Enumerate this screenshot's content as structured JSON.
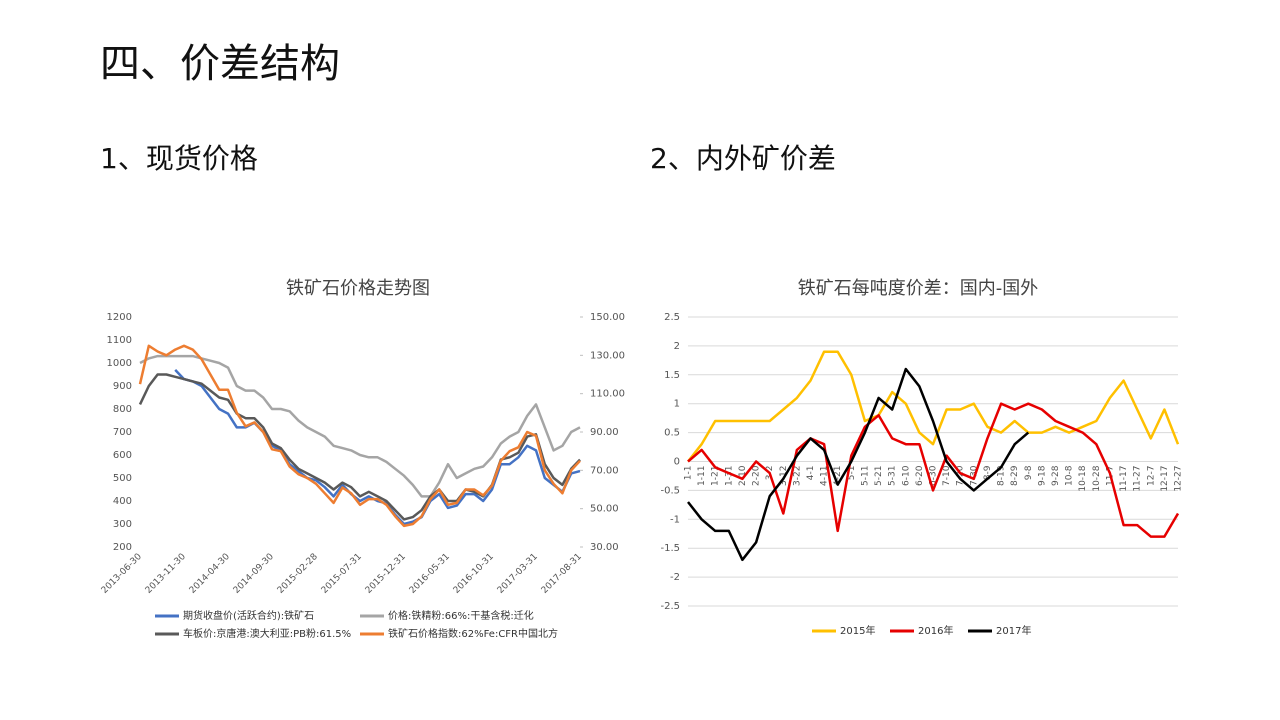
{
  "header": {
    "title": "四、价差结构"
  },
  "sections": [
    "1、现货价格",
    "2、内外矿价差"
  ],
  "chart_data": [
    {
      "type": "line",
      "title": "铁矿石价格走势图",
      "categories": [
        "2013-06-30",
        null,
        null,
        null,
        null,
        "2013-11-30",
        null,
        null,
        null,
        null,
        "2014-04-30",
        null,
        null,
        null,
        null,
        "2014-09-30",
        null,
        null,
        null,
        null,
        "2015-02-28",
        null,
        null,
        null,
        null,
        "2015-07-31",
        null,
        null,
        null,
        null,
        "2015-12-31",
        null,
        null,
        null,
        null,
        "2016-05-31",
        null,
        null,
        null,
        null,
        "2016-10-31",
        null,
        null,
        null,
        null,
        "2017-03-31",
        null,
        null,
        null,
        null,
        "2017-08-31"
      ],
      "ylim": [
        200,
        1200
      ],
      "yticks": [
        200,
        300,
        400,
        500,
        600,
        700,
        800,
        900,
        1000,
        1100,
        1200
      ],
      "y2lim": [
        30,
        150
      ],
      "y2ticks": [
        {
          "value": 30,
          "label": "30.00"
        },
        {
          "value": 50,
          "label": "50.00"
        },
        {
          "value": 70,
          "label": "70.00"
        },
        {
          "value": 90,
          "label": "90.00"
        },
        {
          "value": 110,
          "label": "110.00"
        },
        {
          "value": 130,
          "label": "130.00"
        },
        {
          "value": 150,
          "label": "150.00"
        }
      ],
      "grid": false,
      "legend": "bottom",
      "series": [
        {
          "name": "期货收盘价(活跃合约):铁矿石",
          "color": "#4472c4",
          "values": [
            null,
            null,
            null,
            null,
            970,
            930,
            920,
            900,
            850,
            800,
            780,
            720,
            720,
            740,
            700,
            640,
            620,
            560,
            530,
            500,
            490,
            460,
            420,
            470,
            430,
            400,
            420,
            400,
            390,
            340,
            300,
            310,
            330,
            400,
            430,
            370,
            380,
            430,
            430,
            400,
            450,
            560,
            560,
            590,
            640,
            620,
            500,
            470,
            440,
            520,
            530
          ]
        },
        {
          "name": "价格:铁精粉:66%:干基含税:迁化",
          "color": "#a5a5a5",
          "values": [
            1000,
            1020,
            1030,
            1030,
            1030,
            1030,
            1030,
            1020,
            1010,
            1000,
            980,
            900,
            880,
            880,
            850,
            800,
            800,
            790,
            750,
            720,
            700,
            680,
            640,
            630,
            620,
            600,
            590,
            590,
            570,
            540,
            510,
            470,
            420,
            420,
            480,
            560,
            500,
            520,
            540,
            550,
            590,
            650,
            680,
            700,
            770,
            820,
            720,
            620,
            640,
            700,
            720
          ]
        },
        {
          "name": "车板价:京唐港:澳大利亚:PB粉:61.5%",
          "color": "#595959",
          "values": [
            820,
            900,
            950,
            950,
            940,
            930,
            920,
            910,
            880,
            850,
            840,
            780,
            760,
            760,
            720,
            650,
            630,
            580,
            540,
            520,
            500,
            480,
            450,
            480,
            460,
            420,
            440,
            420,
            400,
            360,
            320,
            330,
            360,
            420,
            450,
            400,
            400,
            450,
            440,
            420,
            470,
            580,
            590,
            610,
            680,
            690,
            560,
            500,
            470,
            540,
            580
          ]
        },
        {
          "name": "铁矿石价格指数:62%Fe:CFR中国北方",
          "color": "#ed7d31",
          "axis": "y2",
          "values": [
            115,
            135,
            132,
            130,
            133,
            135,
            133,
            128,
            120,
            112,
            112,
            100,
            93,
            95,
            90,
            81,
            80,
            72,
            68,
            66,
            63,
            58,
            53,
            61,
            58,
            52,
            55,
            55,
            52,
            46,
            41,
            42,
            46,
            55,
            60,
            52,
            53,
            60,
            60,
            57,
            62,
            75,
            80,
            82,
            90,
            88,
            70,
            63,
            58,
            70,
            75
          ]
        }
      ]
    },
    {
      "type": "line",
      "title": "铁矿石每吨度价差：国内-国外",
      "categories": [
        "1-1",
        "1-11",
        "1-21",
        "1-31",
        "2-10",
        "2-20",
        "3-2",
        "3-12",
        "3-22",
        "4-1",
        "4-11",
        "4-21",
        "5-1",
        "5-11",
        "5-21",
        "5-31",
        "6-10",
        "6-20",
        "6-30",
        "7-10",
        "7-20",
        "7-30",
        "8-9",
        "8-19",
        "8-29",
        "9-8",
        "9-18",
        "9-28",
        "10-8",
        "10-18",
        "10-28",
        "11-7",
        "11-17",
        "11-27",
        "12-7",
        "12-17",
        "12-27"
      ],
      "ylim": [
        -2.5,
        2.5
      ],
      "yticks": [
        -2.5,
        -2,
        -1.5,
        -1,
        -0.5,
        0,
        0.5,
        1,
        1.5,
        2,
        2.5
      ],
      "grid": true,
      "legend": "bottom",
      "series": [
        {
          "name": "2015年",
          "color": "#ffc000",
          "values": [
            0,
            0.3,
            0.7,
            0.7,
            0.7,
            0.7,
            0.7,
            0.9,
            1.1,
            1.4,
            1.9,
            1.9,
            1.5,
            0.7,
            0.8,
            1.2,
            1.0,
            0.5,
            0.3,
            0.9,
            0.9,
            1.0,
            0.6,
            0.5,
            0.7,
            0.5,
            0.5,
            0.6,
            0.5,
            0.6,
            0.7,
            1.1,
            1.4,
            0.9,
            0.4,
            0.9,
            0.3
          ]
        },
        {
          "name": "2016年",
          "color": "#e60000",
          "values": [
            0,
            0.2,
            -0.1,
            -0.2,
            -0.3,
            0,
            -0.2,
            -0.9,
            0.2,
            0.4,
            0.3,
            -1.2,
            0.1,
            0.6,
            0.8,
            0.4,
            0.3,
            0.3,
            -0.5,
            0.1,
            -0.2,
            -0.3,
            0.4,
            1.0,
            0.9,
            1.0,
            0.9,
            0.7,
            0.6,
            0.5,
            0.3,
            -0.2,
            -1.1,
            -1.1,
            -1.3,
            -1.3,
            -0.9
          ]
        },
        {
          "name": "2017年",
          "color": "#000000",
          "values": [
            -0.7,
            -1.0,
            -1.2,
            -1.2,
            -1.7,
            -1.4,
            -0.6,
            -0.3,
            0.1,
            0.4,
            0.2,
            -0.4,
            0,
            0.5,
            1.1,
            0.9,
            1.6,
            1.3,
            0.7,
            0,
            -0.3,
            -0.5,
            -0.3,
            -0.1,
            0.3,
            0.5,
            null,
            null,
            null,
            null,
            null,
            null,
            null,
            null,
            null,
            null,
            null
          ]
        }
      ]
    }
  ]
}
